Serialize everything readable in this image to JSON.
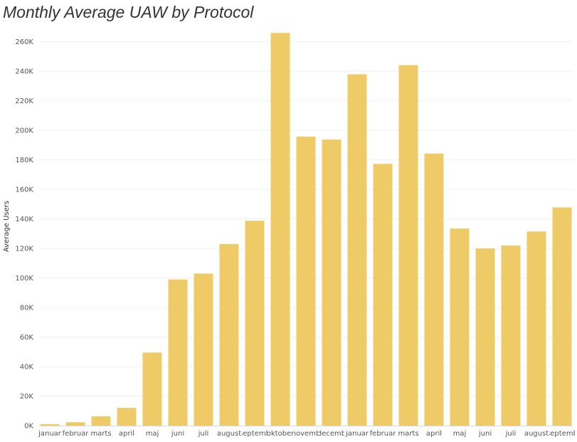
{
  "chart_data": {
    "type": "bar",
    "title": "Monthly Average UAW by Protocol",
    "xlabel": "",
    "ylabel": "Average Users",
    "ylim": [
      0,
      270000
    ],
    "yticks": [
      0,
      20000,
      40000,
      60000,
      80000,
      100000,
      120000,
      140000,
      160000,
      180000,
      200000,
      220000,
      240000,
      260000
    ],
    "ytick_labels": [
      "0K",
      "20K",
      "40K",
      "60K",
      "80K",
      "100K",
      "120K",
      "140K",
      "160K",
      "180K",
      "200K",
      "220K",
      "240K",
      "260K"
    ],
    "grid": true,
    "legend": "none",
    "bar_color": "#EFCB68",
    "categories": [
      "januar",
      "februar",
      "marts",
      "april",
      "maj",
      "juni",
      "juli",
      "august",
      "septemb",
      "oktober",
      "novemb",
      "decemb",
      "januar",
      "februar",
      "marts",
      "april",
      "maj",
      "juni",
      "juli",
      "august",
      "septemb"
    ],
    "values": [
      1000,
      2300,
      6300,
      12000,
      49500,
      99000,
      103000,
      123000,
      138800,
      266000,
      195800,
      193800,
      238000,
      177300,
      244200,
      184300,
      133500,
      120000,
      122000,
      131500,
      147800
    ]
  }
}
